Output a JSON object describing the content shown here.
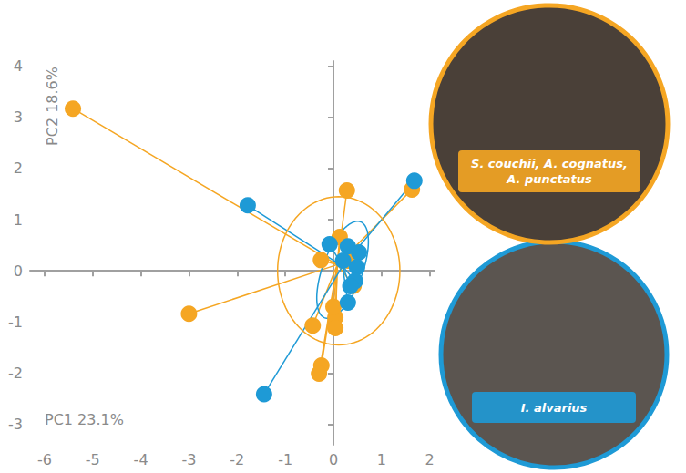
{
  "chart_data": {
    "type": "scatter",
    "xlabel": "PC1 23.1%",
    "ylabel": "PC2 18.6%",
    "xlim": [
      -6.3,
      2.1
    ],
    "ylim": [
      -3.4,
      4.1
    ],
    "xticks": [
      -6,
      -5,
      -4,
      -3,
      -2,
      -1,
      0,
      1,
      2
    ],
    "yticks": [
      -3,
      -2,
      -1,
      0,
      1,
      2,
      3,
      4
    ],
    "grid": false,
    "series": [
      {
        "name": "S. couchii, A. cognatus, A. punctatus",
        "color": "#f5a623",
        "marker": "circle",
        "values": [
          [
            -5.41,
            3.17
          ],
          [
            -3.0,
            -0.84
          ],
          [
            0.28,
            1.57
          ],
          [
            1.63,
            1.59
          ],
          [
            -0.26,
            0.21
          ],
          [
            0.13,
            0.66
          ],
          [
            -0.43,
            -1.07
          ],
          [
            0.04,
            -0.91
          ],
          [
            0.04,
            -1.12
          ],
          [
            -0.25,
            -1.85
          ],
          [
            -0.3,
            -2.01
          ],
          [
            0.42,
            -0.29
          ],
          [
            0.3,
            0.2
          ],
          [
            0.0,
            -0.7
          ]
        ],
        "centroid": [
          0.08,
          0.12
        ],
        "ellipse": {
          "center": [
            0.11,
            0.0
          ],
          "radii": [
            1.27,
            1.45
          ],
          "angle": 0
        }
      },
      {
        "name": "I. alvarius",
        "color": "#1e9ad6",
        "marker": "circle",
        "values": [
          [
            -1.78,
            1.28
          ],
          [
            1.68,
            1.76
          ],
          [
            -1.44,
            -2.41
          ],
          [
            -0.08,
            0.52
          ],
          [
            0.3,
            0.48
          ],
          [
            0.53,
            0.36
          ],
          [
            0.49,
            0.07
          ],
          [
            0.45,
            -0.2
          ],
          [
            0.3,
            -0.62
          ],
          [
            0.35,
            -0.3
          ],
          [
            0.2,
            0.2
          ]
        ],
        "centroid": [
          0.19,
          0.09
        ],
        "ellipse": {
          "center": [
            0.19,
            0.02
          ],
          "radii": [
            1.01,
            0.41
          ],
          "angle": 68
        }
      }
    ]
  }
}
